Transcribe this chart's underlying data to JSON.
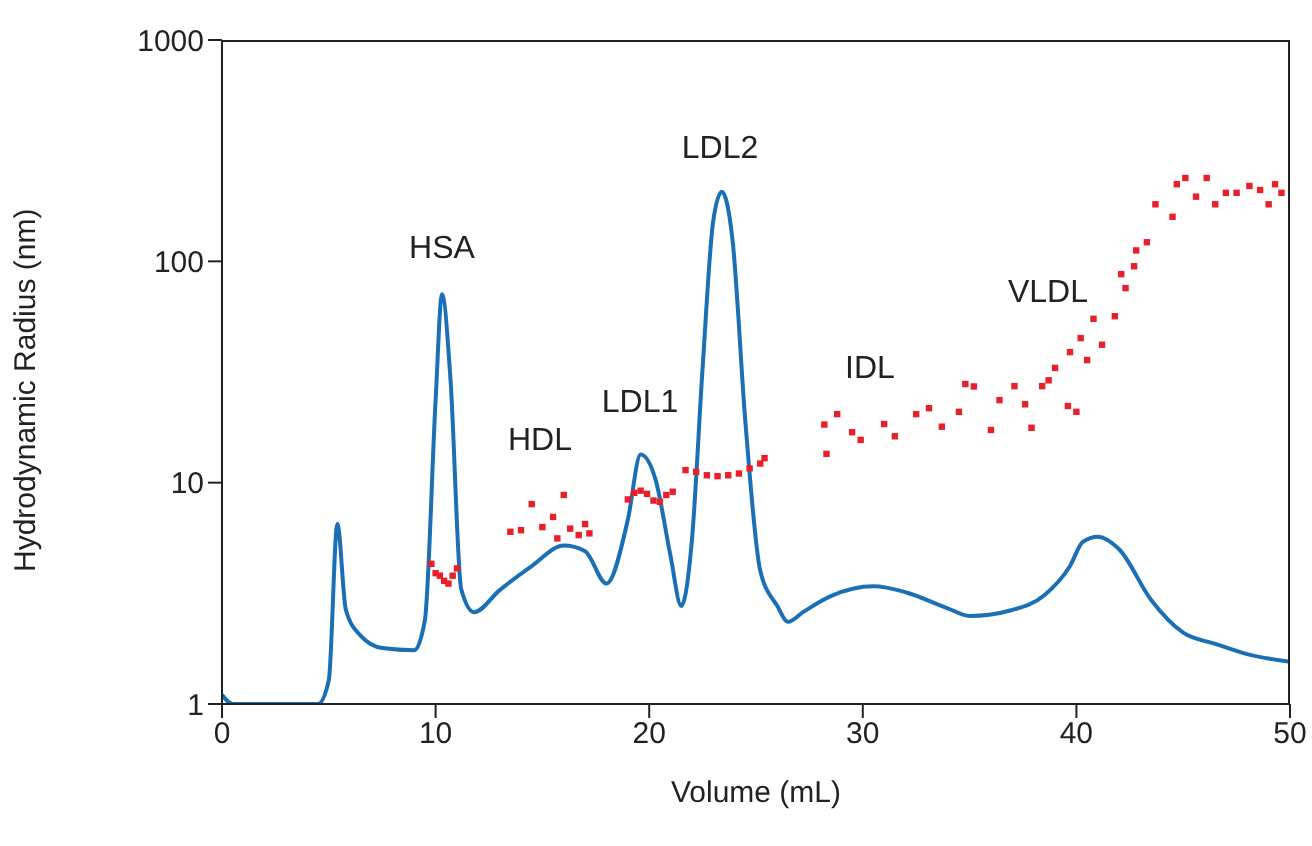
{
  "chart_data": {
    "type": "line",
    "xlabel": "Volume (mL)",
    "ylabel": "Hydrodynamic Radius (nm)",
    "log": "y",
    "xlim": [
      0,
      50
    ],
    "xticks": [
      0,
      10,
      20,
      30,
      40,
      50
    ],
    "ylim": [
      1,
      1000
    ],
    "yticks": [
      1,
      10,
      100,
      1000
    ],
    "annotations": [
      "HSA",
      "HDL",
      "LDL1",
      "LDL2",
      "IDL",
      "VLDL"
    ],
    "series": [
      {
        "color": "#1a6fb5",
        "marker": "none",
        "line_style": "solid",
        "x": [
          0,
          0.5,
          4.5,
          5,
          5.4,
          5.8,
          6.5,
          7.5,
          9,
          9.5,
          10,
          10.3,
          10.7,
          11.2,
          11.8,
          13,
          14.5,
          16,
          17,
          18,
          19,
          19.6,
          20.3,
          21,
          21.5,
          22,
          22.5,
          23,
          23.4,
          23.9,
          24.5,
          25.2,
          26,
          26.5,
          27.2,
          28.5,
          30.5,
          32,
          34,
          35,
          37,
          38.5,
          39.7,
          40.3,
          41,
          42,
          43.5,
          45,
          46.5,
          48,
          50
        ],
        "values": [
          1.1,
          1.0,
          1.0,
          1.28,
          6.5,
          2.66,
          2.03,
          1.79,
          1.75,
          2.4,
          23.6,
          71,
          29,
          3.3,
          2.6,
          3.27,
          4.2,
          5.2,
          4.9,
          3.5,
          6.8,
          13.4,
          10.3,
          4.66,
          2.77,
          5.5,
          33,
          153,
          206,
          125,
          19,
          4.0,
          2.77,
          2.35,
          2.6,
          3.07,
          3.4,
          3.2,
          2.7,
          2.5,
          2.66,
          3.1,
          4.2,
          5.4,
          5.7,
          5.0,
          2.95,
          2.1,
          1.87,
          1.68,
          1.55
        ]
      },
      {
        "type": "scatter",
        "color": "#e8202a",
        "marker": "square",
        "x": [
          9.8,
          10.0,
          10.2,
          10.4,
          10.6,
          10.8,
          11.0,
          13.5,
          14,
          14.5,
          15,
          15.5,
          15.7,
          16,
          16.3,
          16.7,
          17,
          17.2,
          19.0,
          19.3,
          19.6,
          19.9,
          20.2,
          20.5,
          20.8,
          21.1,
          21.7,
          22.2,
          22.7,
          23.2,
          23.7,
          24.2,
          24.7,
          25.2,
          25.4,
          28.2,
          28.3,
          28.8,
          29.5,
          29.9,
          31.0,
          31.5,
          32.5,
          33.1,
          33.7,
          34.5,
          34.8,
          35.2,
          36.0,
          36.4,
          37.1,
          37.6,
          37.9,
          38.4,
          38.7,
          39.0,
          39.6,
          39.7,
          40.0,
          40.2,
          40.5,
          40.8,
          41.2,
          41.8,
          42.1,
          42.3,
          42.7,
          42.8,
          43.3,
          43.7,
          44.5,
          44.7,
          45.1,
          45.6,
          46.1,
          46.5,
          47.0,
          47.5,
          48.1,
          48.6,
          49.0,
          49.3,
          49.6
        ],
        "values": [
          4.3,
          3.9,
          3.8,
          3.6,
          3.5,
          3.8,
          4.1,
          6.0,
          6.1,
          8.0,
          6.3,
          7.0,
          5.6,
          8.8,
          6.2,
          5.8,
          6.5,
          5.9,
          8.4,
          9.0,
          9.2,
          8.9,
          8.3,
          8.2,
          8.8,
          9.1,
          11.4,
          11.2,
          10.8,
          10.7,
          10.8,
          11.0,
          11.6,
          12.2,
          12.9,
          18.3,
          13.5,
          20.4,
          16.9,
          15.6,
          18.4,
          16.2,
          20.4,
          21.7,
          17.9,
          20.9,
          27.9,
          27.2,
          17.3,
          23.6,
          27.3,
          22.6,
          17.7,
          27.3,
          29,
          33,
          22.2,
          38.9,
          20.9,
          45,
          35.8,
          55,
          42,
          56.5,
          87.5,
          75.7,
          95,
          112,
          122,
          181,
          159,
          223,
          238,
          196,
          238,
          181,
          204,
          204,
          219,
          210,
          181,
          223,
          204
        ]
      }
    ]
  }
}
